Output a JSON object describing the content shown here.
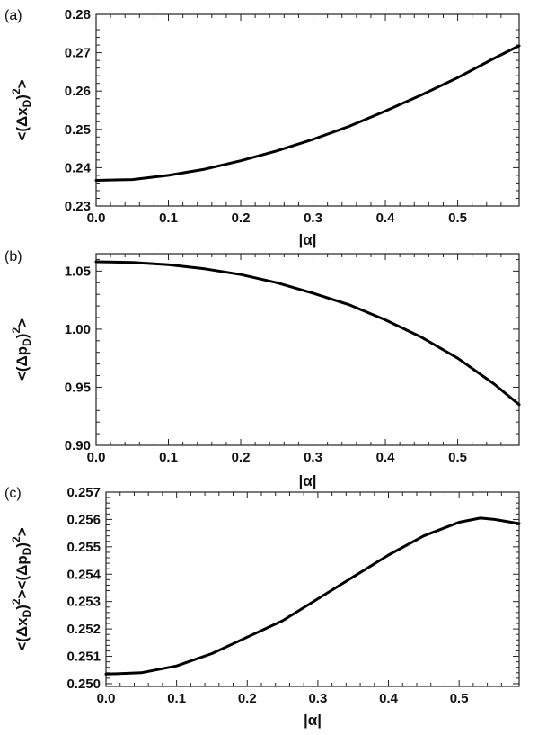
{
  "chart_data": [
    {
      "panel": "(a)",
      "type": "line",
      "xlabel": "|α|",
      "ylabel": "<(Δx_D)^2>",
      "xlim": [
        0,
        0.585
      ],
      "ylim": [
        0.23,
        0.28
      ],
      "xticks": [
        "0.0",
        "0.1",
        "0.2",
        "0.3",
        "0.4",
        "0.5"
      ],
      "yticks": [
        "0.23",
        "0.24",
        "0.25",
        "0.26",
        "0.27",
        "0.28"
      ],
      "grid": false,
      "series": [
        {
          "color": "#000000",
          "x": [
            0.0,
            0.05,
            0.1,
            0.15,
            0.2,
            0.25,
            0.3,
            0.35,
            0.4,
            0.45,
            0.5,
            0.55,
            0.585
          ],
          "y": [
            0.2367,
            0.2369,
            0.238,
            0.2396,
            0.2418,
            0.2444,
            0.2474,
            0.2508,
            0.2548,
            0.259,
            0.2635,
            0.2685,
            0.2718
          ]
        }
      ]
    },
    {
      "panel": "(b)",
      "type": "line",
      "xlabel": "|α|",
      "ylabel": "<(Δp_D)^2>",
      "xlim": [
        0,
        0.585
      ],
      "ylim": [
        0.9,
        1.065
      ],
      "xticks": [
        "0.0",
        "0.1",
        "0.2",
        "0.3",
        "0.4",
        "0.5"
      ],
      "yticks": [
        "0.90",
        "0.95",
        "1.00",
        "1.05"
      ],
      "grid": false,
      "series": [
        {
          "color": "#000000",
          "x": [
            0.0,
            0.05,
            0.1,
            0.15,
            0.2,
            0.25,
            0.3,
            0.35,
            0.4,
            0.45,
            0.5,
            0.55,
            0.585
          ],
          "y": [
            1.058,
            1.0575,
            1.0555,
            1.052,
            1.047,
            1.04,
            1.031,
            1.021,
            1.008,
            0.993,
            0.975,
            0.953,
            0.935
          ]
        }
      ]
    },
    {
      "panel": "(c)",
      "type": "line",
      "xlabel": "|α|",
      "ylabel": "<(Δx_D)^2><(Δp_D)^2>",
      "xlim": [
        0,
        0.585
      ],
      "ylim": [
        0.2499,
        0.257
      ],
      "xticks": [
        "0.0",
        "0.1",
        "0.2",
        "0.3",
        "0.4",
        "0.5"
      ],
      "yticks": [
        "0.250",
        "0.251",
        "0.252",
        "0.253",
        "0.254",
        "0.255",
        "0.256",
        "0.257"
      ],
      "grid": false,
      "series": [
        {
          "color": "#000000",
          "x": [
            0.0,
            0.05,
            0.1,
            0.15,
            0.2,
            0.25,
            0.3,
            0.35,
            0.4,
            0.45,
            0.5,
            0.53,
            0.55,
            0.585
          ],
          "y": [
            0.25035,
            0.2504,
            0.25065,
            0.2511,
            0.2517,
            0.2523,
            0.2531,
            0.2539,
            0.2547,
            0.2554,
            0.2559,
            0.25605,
            0.256,
            0.25585
          ]
        }
      ]
    }
  ]
}
